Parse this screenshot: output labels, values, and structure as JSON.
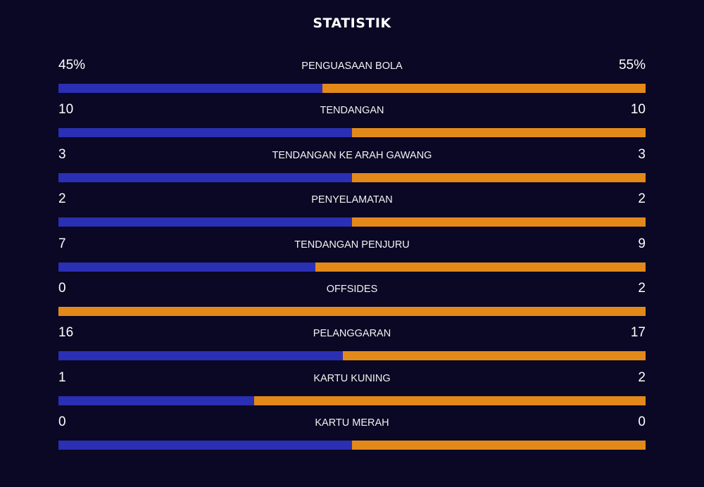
{
  "title": "STATISTIK",
  "colors": {
    "background": "#0a0824",
    "home": "#2a2fb3",
    "away": "#e3891a"
  },
  "stats": [
    {
      "label": "PENGUASAAN BOLA",
      "left": "45%",
      "right": "55%",
      "left_value": 45,
      "right_value": 55
    },
    {
      "label": "TENDANGAN",
      "left": "10",
      "right": "10",
      "left_value": 10,
      "right_value": 10
    },
    {
      "label": "TENDANGAN KE ARAH GAWANG",
      "left": "3",
      "right": "3",
      "left_value": 3,
      "right_value": 3
    },
    {
      "label": "PENYELAMATAN",
      "left": "2",
      "right": "2",
      "left_value": 2,
      "right_value": 2
    },
    {
      "label": "TENDANGAN PENJURU",
      "left": "7",
      "right": "9",
      "left_value": 7,
      "right_value": 9
    },
    {
      "label": "OFFSIDES",
      "left": "0",
      "right": "2",
      "left_value": 0,
      "right_value": 2
    },
    {
      "label": "PELANGGARAN",
      "left": "16",
      "right": "17",
      "left_value": 16,
      "right_value": 17
    },
    {
      "label": "KARTU KUNING",
      "left": "1",
      "right": "2",
      "left_value": 1,
      "right_value": 2
    },
    {
      "label": "KARTU MERAH",
      "left": "0",
      "right": "0",
      "left_value": 0,
      "right_value": 0
    }
  ]
}
